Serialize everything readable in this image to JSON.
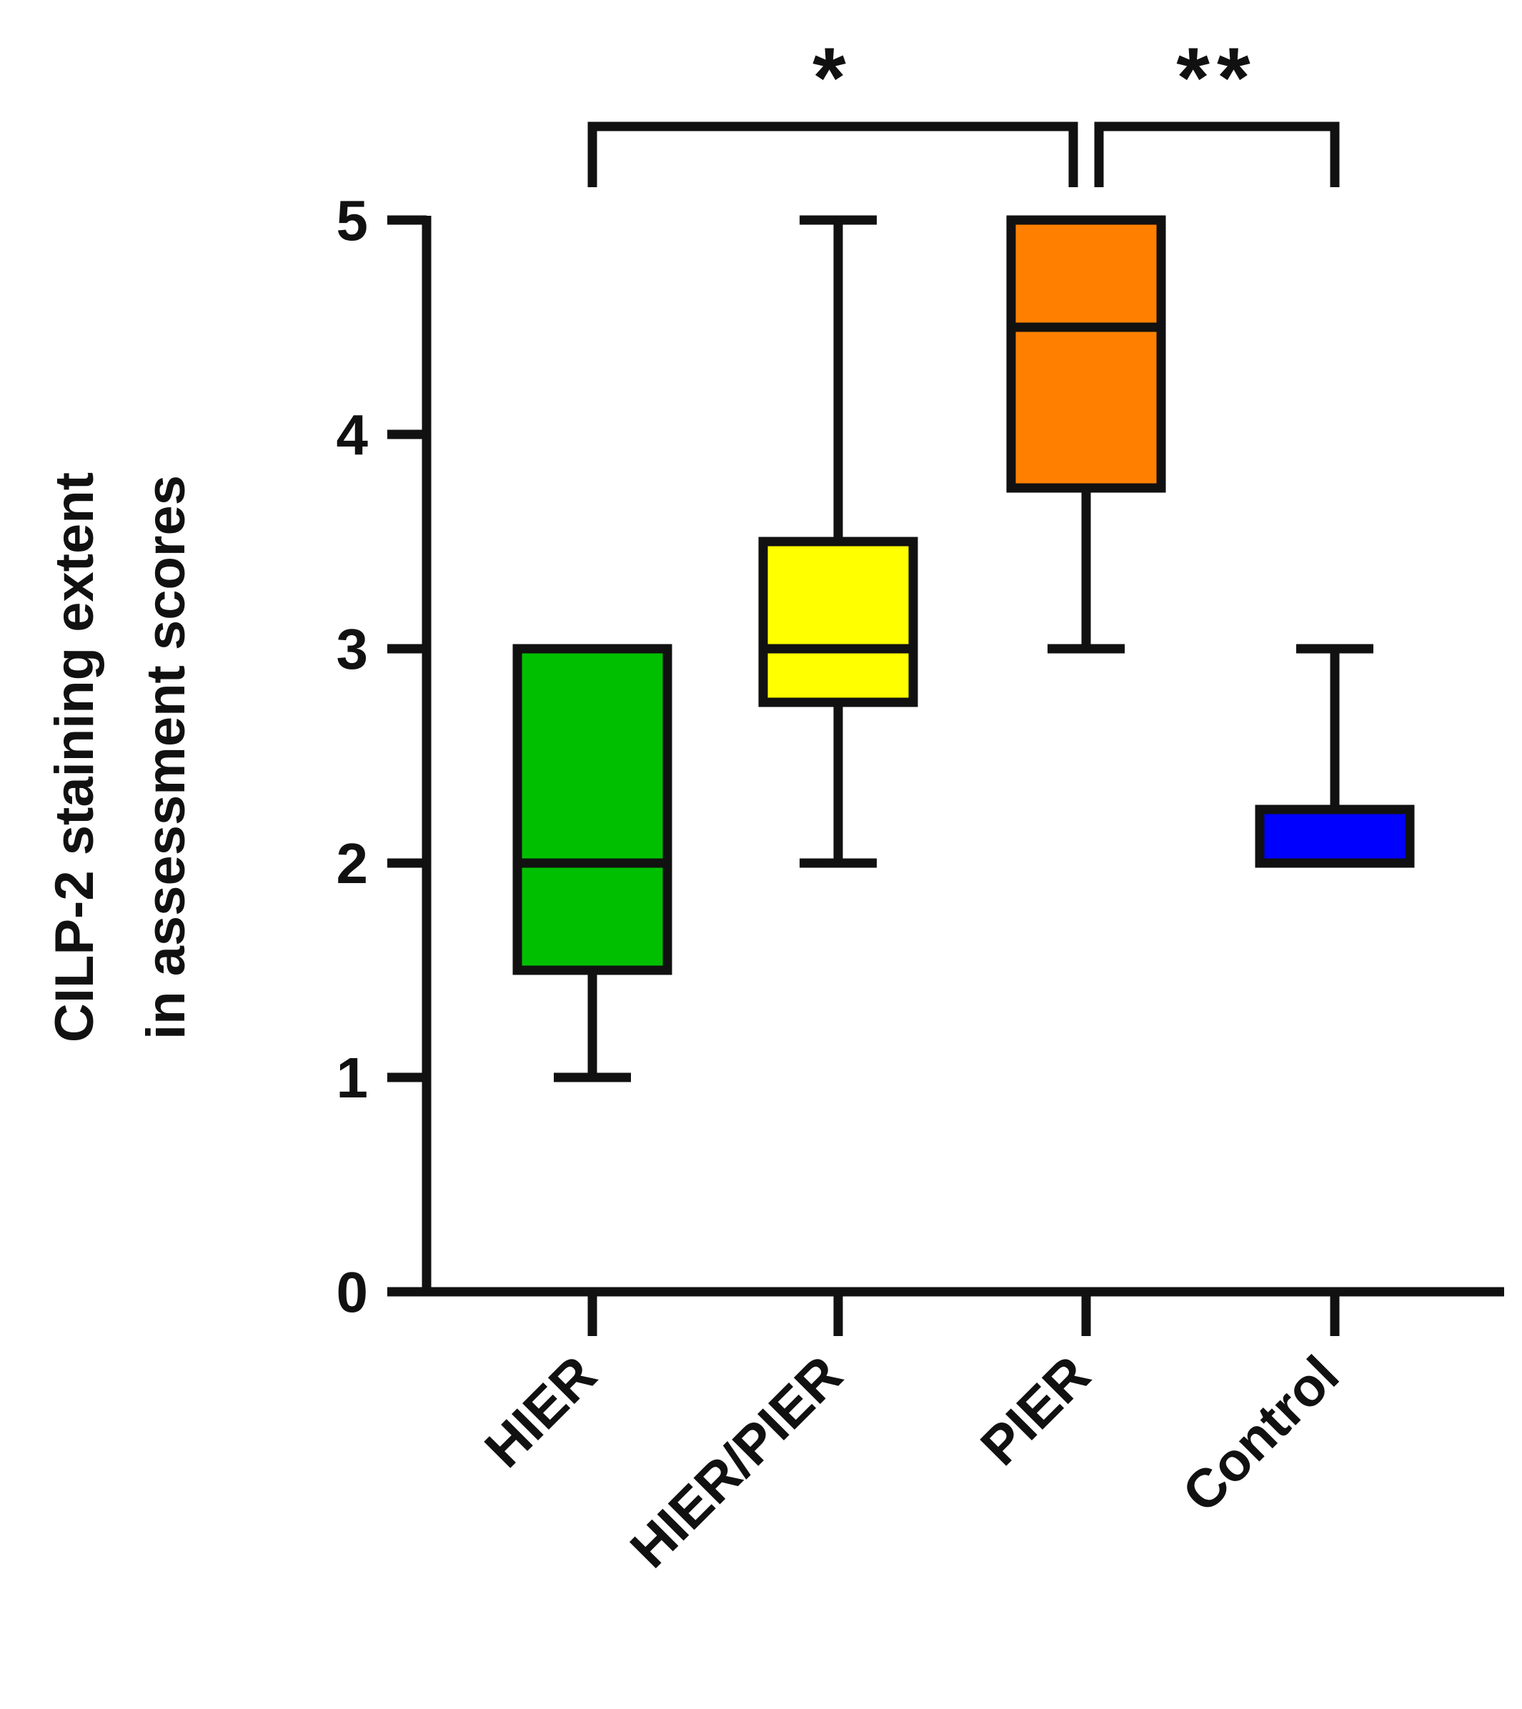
{
  "chart_data": {
    "type": "box",
    "ylabel_lines": [
      "CILP-2 staining extent",
      "in assessment scores"
    ],
    "ylim": [
      0,
      5
    ],
    "yticks": [
      0,
      1,
      2,
      3,
      4,
      5
    ],
    "categories": [
      "HIER",
      "HIER/PIER",
      "PIER",
      "Control"
    ],
    "boxes": [
      {
        "category": "HIER",
        "min": 1,
        "q1": 1.5,
        "median": 2,
        "q3": 3,
        "max": 3,
        "color": "#00bf00"
      },
      {
        "category": "HIER/PIER",
        "min": 2,
        "q1": 2.75,
        "median": 3,
        "q3": 3.5,
        "max": 5,
        "color": "#ffff00"
      },
      {
        "category": "PIER",
        "min": 3,
        "q1": 3.75,
        "median": 4.5,
        "q3": 5,
        "max": 5,
        "color": "#ff8000"
      },
      {
        "category": "Control",
        "min": 2,
        "q1": 2,
        "median": 2,
        "q3": 2.25,
        "max": 3,
        "color": "#0000ff"
      }
    ],
    "significance": [
      {
        "from": "HIER",
        "to": "PIER",
        "label": "*"
      },
      {
        "from": "PIER",
        "to": "Control",
        "label": "**"
      }
    ],
    "grid": false,
    "legend": "none"
  }
}
